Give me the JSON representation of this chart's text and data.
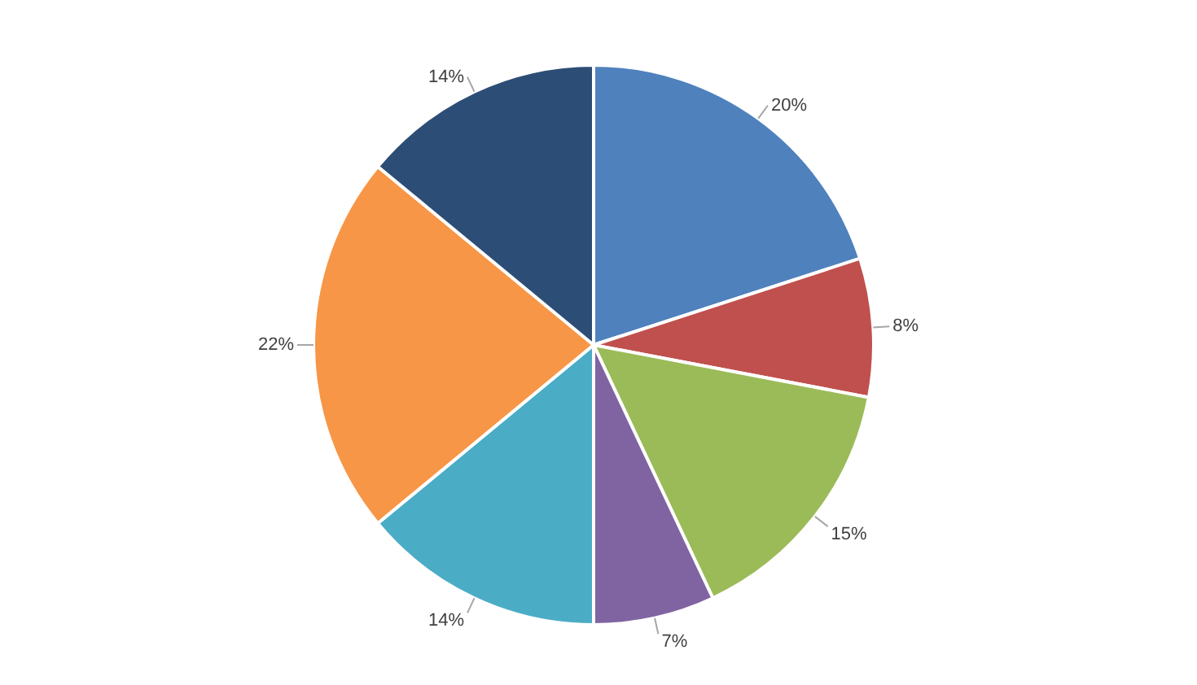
{
  "chart_data": {
    "type": "pie",
    "categories": [
      null,
      null,
      null,
      null,
      null,
      null,
      null
    ],
    "values": [
      20,
      8,
      15,
      7,
      14,
      22,
      14
    ],
    "colors": [
      "#4f81bd",
      "#c0504d",
      "#9bbb59",
      "#8064a2",
      "#4bacc6",
      "#f79646",
      "#2c4d75"
    ],
    "value_labels": [
      "20%",
      "8%",
      "15%",
      "7%",
      "14%",
      "22%",
      "14%"
    ],
    "legend": false
  }
}
